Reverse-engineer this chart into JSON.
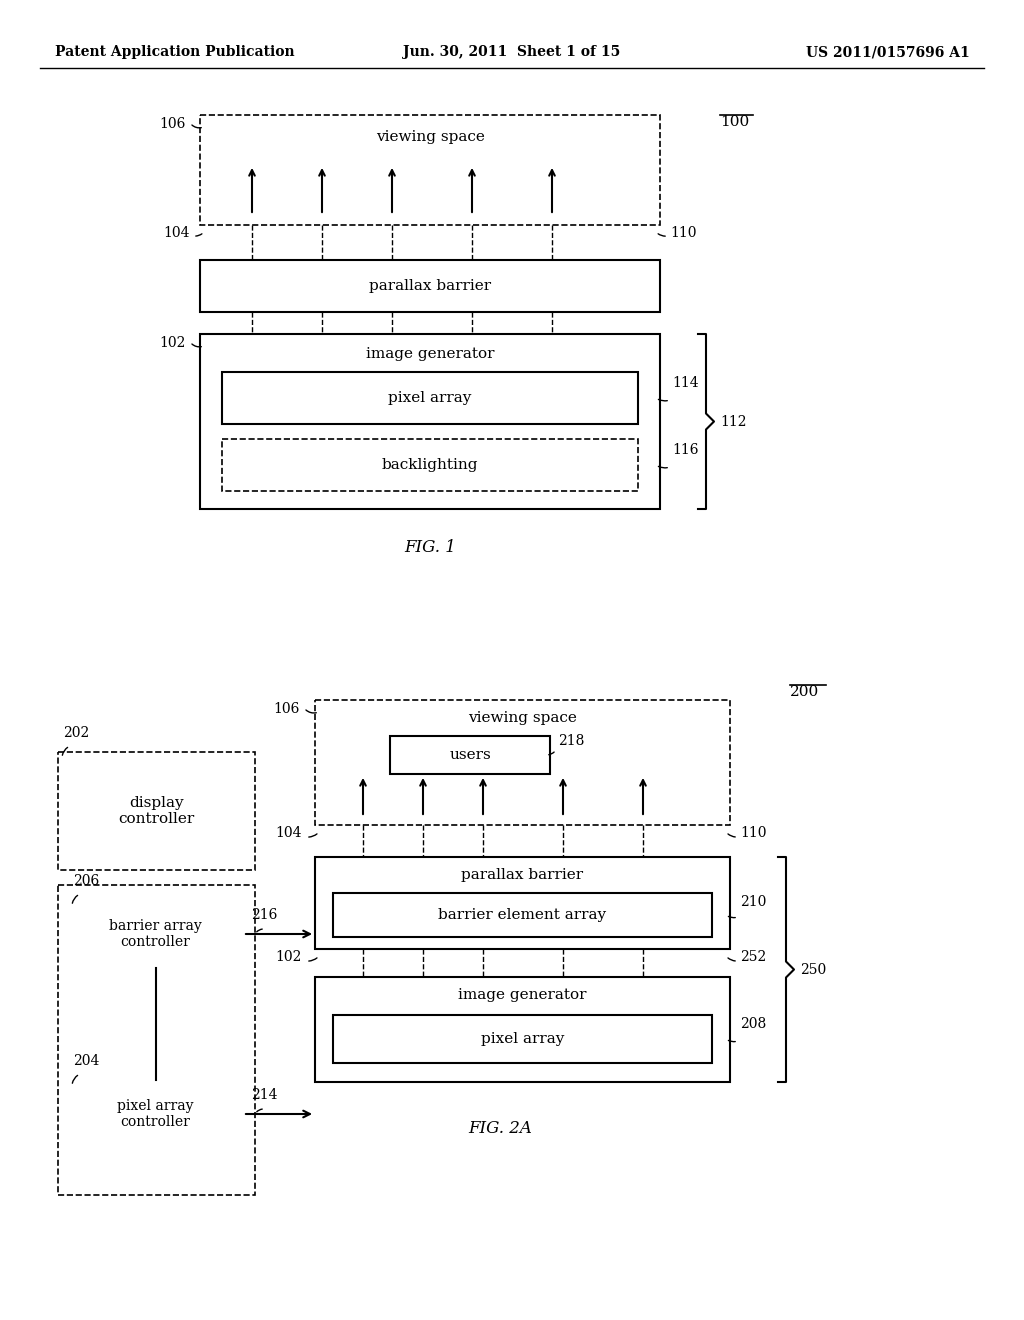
{
  "bg_color": "#ffffff",
  "header": {
    "left": "Patent Application Publication",
    "center": "Jun. 30, 2011  Sheet 1 of 15",
    "right": "US 2011/0157696 A1"
  },
  "fig1": {
    "label": "FIG. 1",
    "ref_100": "100",
    "ref_106": "106",
    "ref_104": "104",
    "ref_110": "110",
    "ref_102": "102",
    "ref_112": "112",
    "ref_114": "114",
    "ref_116": "116",
    "viewing_space_text": "viewing space",
    "parallax_barrier_text": "parallax barrier",
    "image_generator_text": "image generator",
    "pixel_array_text": "pixel array",
    "backlighting_text": "backlighting"
  },
  "fig2a": {
    "label": "FIG. 2A",
    "ref_200": "200",
    "ref_106": "106",
    "ref_104": "104",
    "ref_110": "110",
    "ref_102": "102",
    "ref_202": "202",
    "ref_204": "204",
    "ref_206": "206",
    "ref_208": "208",
    "ref_210": "210",
    "ref_214": "214",
    "ref_216": "216",
    "ref_218": "218",
    "ref_250": "250",
    "ref_252": "252",
    "viewing_space_text": "viewing space",
    "users_text": "users",
    "parallax_barrier_text": "parallax barrier",
    "barrier_element_array_text": "barrier element array",
    "image_generator_text": "image generator",
    "pixel_array_text": "pixel array",
    "display_controller_text": "display\ncontroller",
    "barrier_array_controller_text": "barrier array\ncontroller",
    "pixel_array_controller_text": "pixel array\ncontroller"
  }
}
